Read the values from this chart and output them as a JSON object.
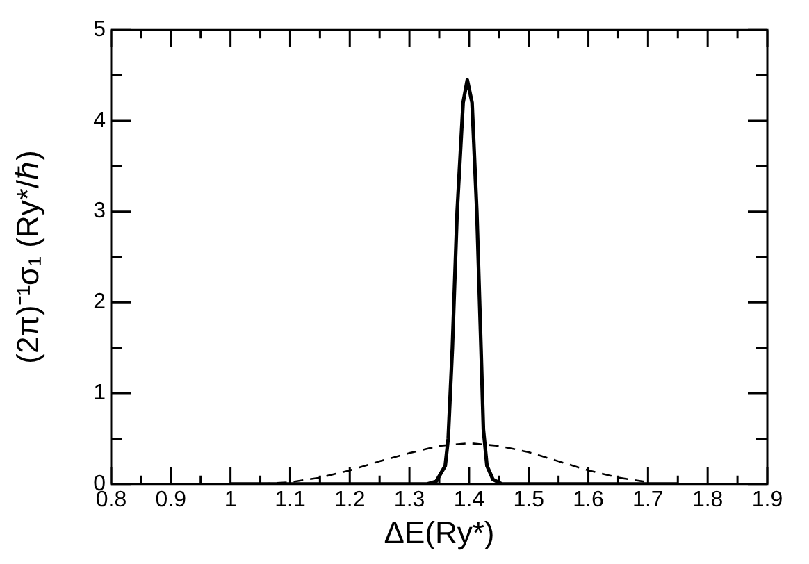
{
  "chart_data": {
    "type": "line",
    "xlabel": "ΔE(Ry*)",
    "ylabel": "(2π)⁻¹σ₁ (Ry*/ℏ)",
    "xlim": [
      0.8,
      1.9
    ],
    "ylim": [
      0,
      5
    ],
    "xticks": [
      0.8,
      {
        "value": 0.85,
        "label": null
      },
      0.9,
      {
        "value": 0.95,
        "label": null
      },
      1,
      {
        "value": 1.05,
        "label": null
      },
      1.1,
      {
        "value": 1.15,
        "label": null
      },
      1.2,
      {
        "value": 1.25,
        "label": null
      },
      1.3,
      {
        "value": 1.35,
        "label": null
      },
      1.4,
      {
        "value": 1.45,
        "label": null
      },
      1.5,
      {
        "value": 1.55,
        "label": null
      },
      1.6,
      {
        "value": 1.65,
        "label": null
      },
      1.7,
      {
        "value": 1.75,
        "label": null
      },
      1.8,
      {
        "value": 1.85,
        "label": null
      },
      1.9
    ],
    "yticks": [
      0,
      {
        "value": 0.5,
        "label": null
      },
      1,
      {
        "value": 1.5,
        "label": null
      },
      2,
      {
        "value": 2.5,
        "label": null
      },
      3,
      {
        "value": 3.5,
        "label": null
      },
      4,
      {
        "value": 4.5,
        "label": null
      },
      5
    ],
    "grid": false,
    "legend": false,
    "marker": "none",
    "series": [
      {
        "color": "#000000",
        "line_style": "solid",
        "x": [
          1.0,
          1.33,
          1.345,
          1.36,
          1.365,
          1.372,
          1.38,
          1.39,
          1.397,
          1.405,
          1.413,
          1.42,
          1.424,
          1.43,
          1.44,
          1.455,
          1.75
        ],
        "values": [
          0,
          0,
          0.03,
          0.2,
          0.5,
          1.5,
          3,
          4.2,
          4.45,
          4.2,
          3,
          1.5,
          0.6,
          0.2,
          0.05,
          0,
          0
        ]
      },
      {
        "color": "#000000",
        "line_style": "dashed",
        "x": [
          1.05,
          1.1,
          1.15,
          1.2,
          1.25,
          1.3,
          1.35,
          1.4,
          1.45,
          1.5,
          1.55,
          1.6,
          1.65,
          1.7
        ],
        "values": [
          0,
          0.02,
          0.07,
          0.15,
          0.25,
          0.34,
          0.42,
          0.45,
          0.42,
          0.35,
          0.25,
          0.15,
          0.07,
          0.02
        ]
      }
    ]
  }
}
